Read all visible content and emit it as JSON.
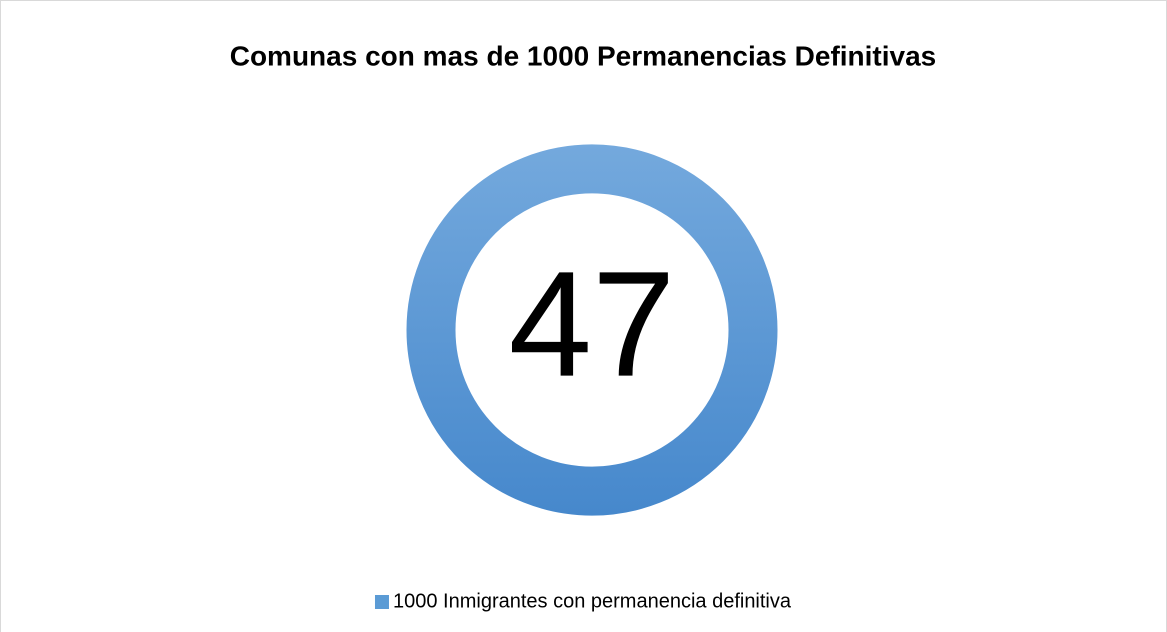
{
  "chart_data": {
    "type": "doughnut",
    "title": "Comunas con mas de 1000 Permanencias Definitivas",
    "categories": [
      "1000 Inmigrantes con permanencia definitiva"
    ],
    "values": [
      47
    ],
    "color": "#5b9bd5",
    "legend": "bottom"
  }
}
